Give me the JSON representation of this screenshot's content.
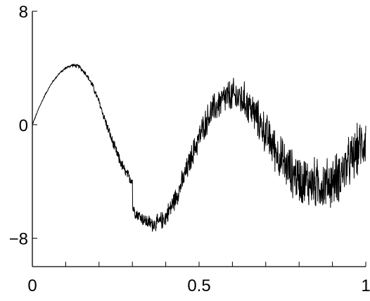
{
  "chart_data": {
    "type": "line",
    "title": "",
    "xlabel": "",
    "ylabel": "",
    "xlim": [
      0,
      1
    ],
    "ylim": [
      -10,
      8
    ],
    "x_ticks": [
      0,
      0.5,
      1
    ],
    "x_tick_labels": [
      "0",
      "0.5",
      "1"
    ],
    "y_ticks": [
      -8,
      0,
      8
    ],
    "y_tick_labels": [
      "−8",
      "0",
      "8"
    ],
    "grid": false,
    "legend": "none",
    "line_color": "#000000",
    "series": [
      {
        "x": [
          0,
          0.02,
          0.04,
          0.06,
          0.08,
          0.1,
          0.12,
          0.14,
          0.16,
          0.18,
          0.2,
          0.22,
          0.24,
          0.26,
          0.28,
          0.29,
          0.3,
          0.3,
          0.31,
          0.32,
          0.34,
          0.36,
          0.38,
          0.4,
          0.42,
          0.44,
          0.46,
          0.48,
          0.5,
          0.52,
          0.54,
          0.56,
          0.58,
          0.6,
          0.62,
          0.64,
          0.66,
          0.68,
          0.7,
          0.72,
          0.74,
          0.76,
          0.78,
          0.8,
          0.82,
          0.84,
          0.86,
          0.88,
          0.9,
          0.92,
          0.94,
          0.96,
          0.98,
          1.0
        ],
        "y": [
          0,
          1.2,
          2.2,
          3.0,
          3.6,
          4.0,
          4.2,
          4.1,
          3.6,
          2.8,
          1.6,
          0.2,
          -1.2,
          -2.4,
          -3.4,
          -3.7,
          -3.9,
          -5.8,
          -6.2,
          -6.4,
          -6.8,
          -7.0,
          -6.9,
          -6.5,
          -5.6,
          -4.6,
          -3.4,
          -2.1,
          -0.9,
          0.2,
          1.0,
          1.5,
          1.9,
          2.0,
          1.9,
          1.6,
          1.0,
          0.2,
          -0.6,
          -1.4,
          -2.2,
          -2.9,
          -3.4,
          -3.8,
          -4.0,
          -4.1,
          -4.2,
          -4.2,
          -4.0,
          -3.6,
          -3.0,
          -2.4,
          -1.6,
          -1.0
        ],
        "noise": [
          0.05,
          0.05,
          0.05,
          0.06,
          0.06,
          0.08,
          0.1,
          0.12,
          0.14,
          0.18,
          0.22,
          0.26,
          0.3,
          0.32,
          0.34,
          0.35,
          0.35,
          0.35,
          0.36,
          0.38,
          0.42,
          0.46,
          0.5,
          0.55,
          0.6,
          0.65,
          0.7,
          0.75,
          0.8,
          0.85,
          0.9,
          0.95,
          1.0,
          1.05,
          1.1,
          1.1,
          1.1,
          1.15,
          1.2,
          1.25,
          1.3,
          1.35,
          1.4,
          1.45,
          1.5,
          1.5,
          1.5,
          1.5,
          1.5,
          1.5,
          1.5,
          1.5,
          1.5,
          1.5
        ]
      }
    ]
  }
}
